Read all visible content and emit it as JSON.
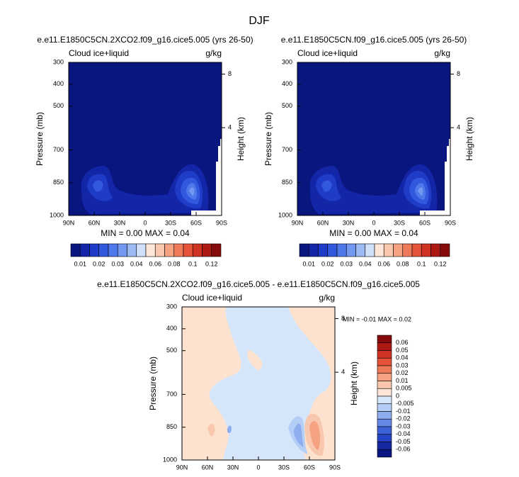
{
  "title": "DJF",
  "chart_data": [
    {
      "type": "contour",
      "title": "e.e11.E1850C5CN.2XCO2.f09_g16.cice5.005 (yrs 26-50)",
      "left_string": "Cloud ice+liquid",
      "right_string": "g/kg",
      "ylabel": "Pressure (mb)",
      "y2label": "Height (km)",
      "annotation": "MIN =  0.00  MAX =  0.04",
      "xlim": [
        90,
        -90
      ],
      "xticks": [
        {
          "value": 90,
          "label": "90N"
        },
        {
          "value": 60,
          "label": "60N"
        },
        {
          "value": 30,
          "label": "30N"
        },
        0,
        {
          "value": -30,
          "label": "30S"
        },
        {
          "value": -60,
          "label": "60S"
        },
        {
          "value": -90,
          "label": "90S"
        }
      ],
      "ylim": [
        1000,
        300
      ],
      "yticks": [
        300,
        400,
        500,
        700,
        850,
        1000
      ],
      "y2ticks": [
        8,
        4
      ],
      "colorbar": {
        "orientation": "horizontal",
        "colors": [
          "#0a1680",
          "#1426a8",
          "#1f3cc8",
          "#3258de",
          "#4f78ea",
          "#7298f0",
          "#9cbaf4",
          "#cfe0f8",
          "#fde6d8",
          "#f9c7ad",
          "#f5a283",
          "#ef7a5a",
          "#e5533a",
          "#cf3322",
          "#ad1a14",
          "#860a0a"
        ],
        "labels": [
          0.01,
          0.02,
          0.03,
          0.04,
          0.06,
          0.08,
          0.1,
          0.12
        ]
      }
    },
    {
      "type": "contour",
      "title": "e.e11.E1850C5CN.f09_g16.cice5.005 (yrs 26-50)",
      "left_string": "Cloud ice+liquid",
      "right_string": "g/kg",
      "ylabel": "Pressure (mb)",
      "y2label": "Height (km)",
      "annotation": "MIN =  0.00  MAX =  0.04",
      "xlim": [
        90,
        -90
      ],
      "xticks": [
        {
          "value": 90,
          "label": "90N"
        },
        {
          "value": 60,
          "label": "60N"
        },
        {
          "value": 30,
          "label": "30N"
        },
        0,
        {
          "value": -30,
          "label": "30S"
        },
        {
          "value": -60,
          "label": "60S"
        },
        {
          "value": -90,
          "label": "90S"
        }
      ],
      "ylim": [
        1000,
        300
      ],
      "yticks": [
        300,
        400,
        500,
        700,
        850,
        1000
      ],
      "y2ticks": [
        8,
        4
      ],
      "colorbar": {
        "orientation": "horizontal",
        "colors": [
          "#0a1680",
          "#1426a8",
          "#1f3cc8",
          "#3258de",
          "#4f78ea",
          "#7298f0",
          "#9cbaf4",
          "#cfe0f8",
          "#fde6d8",
          "#f9c7ad",
          "#f5a283",
          "#ef7a5a",
          "#e5533a",
          "#cf3322",
          "#ad1a14",
          "#860a0a"
        ],
        "labels": [
          0.01,
          0.02,
          0.03,
          0.04,
          0.06,
          0.08,
          0.1,
          0.12
        ]
      }
    },
    {
      "type": "contour",
      "title": "e.e11.E1850C5CN.2XCO2.f09_g16.cice5.005 - e.e11.E1850C5CN.f09_g16.cice5.005",
      "left_string": "Cloud ice+liquid",
      "right_string": "g/kg",
      "ylabel": "Pressure (mb)",
      "y2label": "Height (km)",
      "annotation": "MIN = -0.01  MAX =  0.02",
      "xlim": [
        90,
        -90
      ],
      "xticks": [
        {
          "value": 90,
          "label": "90N"
        },
        {
          "value": 60,
          "label": "60N"
        },
        {
          "value": 30,
          "label": "30N"
        },
        0,
        {
          "value": -30,
          "label": "30S"
        },
        {
          "value": -60,
          "label": "60S"
        },
        {
          "value": -90,
          "label": "90S"
        }
      ],
      "ylim": [
        1000,
        300
      ],
      "yticks": [
        300,
        400,
        500,
        700,
        850,
        1000
      ],
      "y2ticks": [
        8,
        4
      ],
      "colorbar": {
        "orientation": "vertical",
        "colors": [
          "#860a0a",
          "#ad1a14",
          "#cf3322",
          "#e5533a",
          "#ef7a5a",
          "#f5a283",
          "#f9c7ad",
          "#fde6d8",
          "#d6e6fa",
          "#b4cef6",
          "#8eaef0",
          "#6488e8",
          "#3e62dc",
          "#2444c4",
          "#1528a0",
          "#0a1680"
        ],
        "labels": [
          0.06,
          0.05,
          0.04,
          0.03,
          0.02,
          0.01,
          0.005,
          0,
          -0.005,
          -0.01,
          -0.02,
          -0.03,
          -0.04,
          -0.05,
          -0.06
        ]
      }
    }
  ]
}
